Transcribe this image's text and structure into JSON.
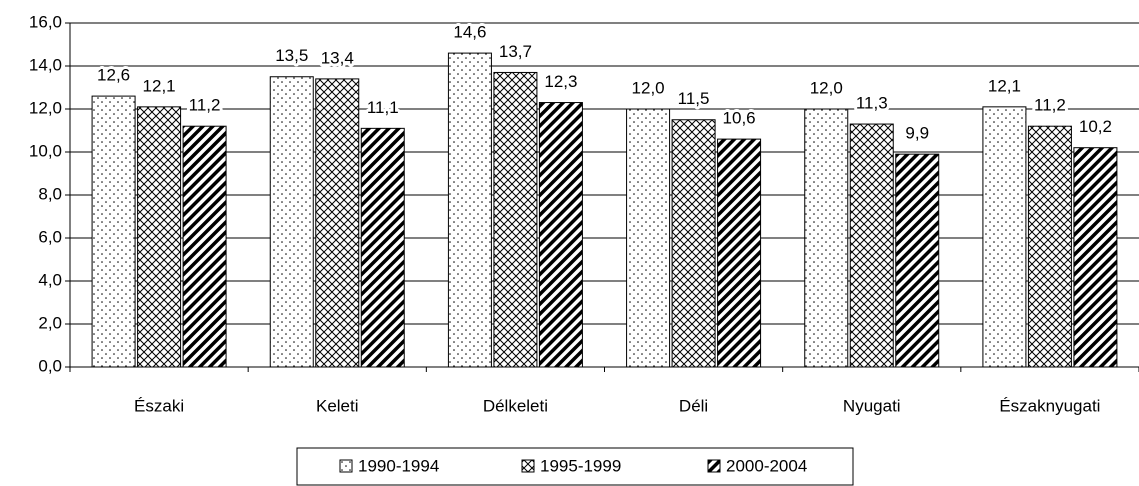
{
  "chart_data": {
    "type": "bar",
    "categories": [
      "Északi",
      "Keleti",
      "Délkeleti",
      "Déli",
      "Nyugati",
      "Északnyugati"
    ],
    "series": [
      {
        "name": "1990-1994",
        "values": [
          12.6,
          13.5,
          14.6,
          12.0,
          12.0,
          12.1
        ],
        "value_labels": [
          "12,6",
          "13,5",
          "14,6",
          "12,0",
          "12,0",
          "12,1"
        ]
      },
      {
        "name": "1995-1999",
        "values": [
          12.1,
          13.4,
          13.7,
          11.5,
          11.3,
          11.2
        ],
        "value_labels": [
          "12,1",
          "13,4",
          "13,7",
          "11,5",
          "11,3",
          "11,2"
        ]
      },
      {
        "name": "2000-2004",
        "values": [
          11.2,
          11.1,
          12.3,
          10.6,
          9.9,
          10.2
        ],
        "value_labels": [
          "11,2",
          "11,1",
          "12,3",
          "10,6",
          "9,9",
          "10,2"
        ]
      }
    ],
    "ylim": [
      0,
      16
    ],
    "yticks": [
      {
        "value": 0,
        "label": "0,0"
      },
      {
        "value": 2,
        "label": "2,0"
      },
      {
        "value": 4,
        "label": "4,0"
      },
      {
        "value": 6,
        "label": "6,0"
      },
      {
        "value": 8,
        "label": "8,0"
      },
      {
        "value": 10,
        "label": "10,0"
      },
      {
        "value": 12,
        "label": "12,0"
      },
      {
        "value": 14,
        "label": "14,0"
      },
      {
        "value": 16,
        "label": "16,0"
      }
    ],
    "grid": true,
    "legend": "bottom"
  }
}
